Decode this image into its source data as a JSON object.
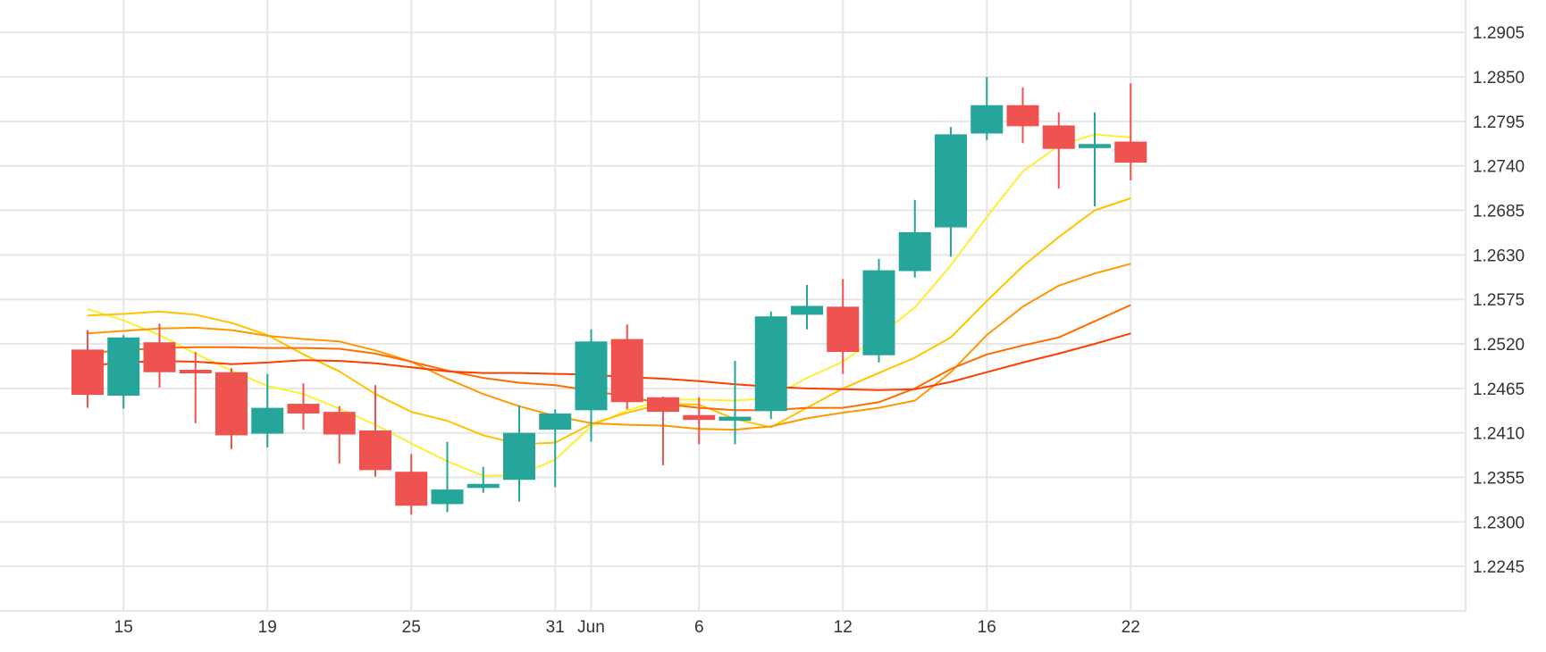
{
  "chart_data": {
    "type": "candlestick",
    "title": "",
    "xlabel": "",
    "ylabel": "",
    "y_ticks": [
      "1.2905",
      "1.2850",
      "1.2795",
      "1.2740",
      "1.2685",
      "1.2630",
      "1.2575",
      "1.2520",
      "1.2465",
      "1.2410",
      "1.2355",
      "1.2300",
      "1.2245"
    ],
    "ylim": [
      1.219,
      1.2945
    ],
    "x_ticks": [
      {
        "label": "15",
        "index": 1
      },
      {
        "label": "19",
        "index": 5
      },
      {
        "label": "25",
        "index": 9
      },
      {
        "label": "31",
        "index": 13
      },
      {
        "label": "Jun",
        "index": 14
      },
      {
        "label": "6",
        "index": 17
      },
      {
        "label": "12",
        "index": 21
      },
      {
        "label": "16",
        "index": 25
      },
      {
        "label": "22",
        "index": 29
      }
    ],
    "grid": true,
    "colors": {
      "up": "#26a69a",
      "down": "#ef5350",
      "grid": "#e6e6e6",
      "axis_text": "#333333"
    },
    "candles": [
      {
        "open": 1.2513,
        "high": 1.2537,
        "low": 1.2441,
        "close": 1.2457
      },
      {
        "open": 1.2456,
        "high": 1.2531,
        "low": 1.244,
        "close": 1.2528
      },
      {
        "open": 1.2522,
        "high": 1.2545,
        "low": 1.2466,
        "close": 1.2485
      },
      {
        "open": 1.2488,
        "high": 1.251,
        "low": 1.2422,
        "close": 1.2486
      },
      {
        "open": 1.2485,
        "high": 1.249,
        "low": 1.239,
        "close": 1.2407
      },
      {
        "open": 1.2409,
        "high": 1.2483,
        "low": 1.2392,
        "close": 1.2441
      },
      {
        "open": 1.2446,
        "high": 1.2471,
        "low": 1.2414,
        "close": 1.2434
      },
      {
        "open": 1.2436,
        "high": 1.2443,
        "low": 1.2372,
        "close": 1.2408
      },
      {
        "open": 1.2413,
        "high": 1.2469,
        "low": 1.2356,
        "close": 1.2364
      },
      {
        "open": 1.2362,
        "high": 1.2384,
        "low": 1.2309,
        "close": 1.232
      },
      {
        "open": 1.2322,
        "high": 1.2399,
        "low": 1.2312,
        "close": 1.234
      },
      {
        "open": 1.2342,
        "high": 1.2368,
        "low": 1.2336,
        "close": 1.2347
      },
      {
        "open": 1.2352,
        "high": 1.2444,
        "low": 1.2325,
        "close": 1.241
      },
      {
        "open": 1.2414,
        "high": 1.2439,
        "low": 1.2343,
        "close": 1.2434
      },
      {
        "open": 1.2438,
        "high": 1.2538,
        "low": 1.2399,
        "close": 1.2523
      },
      {
        "open": 1.2526,
        "high": 1.2544,
        "low": 1.2439,
        "close": 1.2448
      },
      {
        "open": 1.2454,
        "high": 1.2455,
        "low": 1.237,
        "close": 1.2436
      },
      {
        "open": 1.2432,
        "high": 1.2454,
        "low": 1.2396,
        "close": 1.2426
      },
      {
        "open": 1.2425,
        "high": 1.2499,
        "low": 1.2396,
        "close": 1.243
      },
      {
        "open": 1.2437,
        "high": 1.256,
        "low": 1.2427,
        "close": 1.2554
      },
      {
        "open": 1.2556,
        "high": 1.2593,
        "low": 1.2538,
        "close": 1.2567
      },
      {
        "open": 1.2566,
        "high": 1.26,
        "low": 1.2483,
        "close": 1.251
      },
      {
        "open": 1.2506,
        "high": 1.2625,
        "low": 1.2497,
        "close": 1.2611
      },
      {
        "open": 1.261,
        "high": 1.2698,
        "low": 1.2602,
        "close": 1.2658
      },
      {
        "open": 1.2664,
        "high": 1.2788,
        "low": 1.2628,
        "close": 1.2779
      },
      {
        "open": 1.278,
        "high": 1.285,
        "low": 1.2772,
        "close": 1.2815
      },
      {
        "open": 1.2815,
        "high": 1.2837,
        "low": 1.2768,
        "close": 1.2789
      },
      {
        "open": 1.279,
        "high": 1.2806,
        "low": 1.2712,
        "close": 1.2761
      },
      {
        "open": 1.2762,
        "high": 1.2806,
        "low": 1.269,
        "close": 1.2767
      },
      {
        "open": 1.277,
        "high": 1.2842,
        "low": 1.2722,
        "close": 1.2744
      }
    ],
    "series": [
      {
        "color": "#ffee33",
        "values": [
          1.2563,
          1.2549,
          1.2531,
          1.2508,
          1.2487,
          1.2468,
          1.2458,
          1.244,
          1.242,
          1.2397,
          1.2375,
          1.2357,
          1.2358,
          1.2377,
          1.2418,
          1.2438,
          1.2451,
          1.2451,
          1.245,
          1.2453,
          1.2478,
          1.2498,
          1.253,
          1.2565,
          1.2617,
          1.2677,
          1.2733,
          1.2765,
          1.2779,
          1.2775
        ]
      },
      {
        "color": "#ffc400",
        "values": [
          1.2555,
          1.2557,
          1.256,
          1.2556,
          1.2546,
          1.2531,
          1.2507,
          1.2486,
          1.2458,
          1.2436,
          1.2425,
          1.2407,
          1.2396,
          1.2398,
          1.2421,
          1.2435,
          1.2446,
          1.2445,
          1.2427,
          1.2417,
          1.2441,
          1.2465,
          1.2484,
          1.2503,
          1.2528,
          1.2573,
          1.2616,
          1.2652,
          1.2685,
          1.27
        ]
      },
      {
        "color": "#ff9800",
        "values": [
          1.2533,
          1.2536,
          1.2539,
          1.254,
          1.2537,
          1.253,
          1.2526,
          1.2523,
          1.2512,
          1.2498,
          1.2477,
          1.2458,
          1.2443,
          1.2431,
          1.2422,
          1.242,
          1.2419,
          1.2415,
          1.2414,
          1.2418,
          1.2428,
          1.2435,
          1.2441,
          1.245,
          1.2485,
          1.2531,
          1.2566,
          1.2592,
          1.2607,
          1.2619
        ]
      },
      {
        "color": "#ff6d00",
        "values": [
          1.2509,
          1.2512,
          1.2515,
          1.2516,
          1.2516,
          1.2515,
          1.2515,
          1.2514,
          1.2508,
          1.2498,
          1.2487,
          1.2478,
          1.2472,
          1.2469,
          1.2462,
          1.2455,
          1.2446,
          1.2441,
          1.2438,
          1.2438,
          1.2441,
          1.2441,
          1.2448,
          1.2465,
          1.2489,
          1.2507,
          1.2518,
          1.2528,
          1.2548,
          1.2568
        ]
      },
      {
        "color": "#ff3d00",
        "values": [
          1.2493,
          1.2497,
          1.2499,
          1.2498,
          1.2495,
          1.2497,
          1.25,
          1.2499,
          1.2496,
          1.2491,
          1.2486,
          1.2484,
          1.2484,
          1.2483,
          1.2482,
          1.2479,
          1.2477,
          1.2474,
          1.247,
          1.2467,
          1.2465,
          1.2464,
          1.2463,
          1.2464,
          1.2473,
          1.2485,
          1.2497,
          1.2508,
          1.252,
          1.2533
        ]
      }
    ]
  }
}
